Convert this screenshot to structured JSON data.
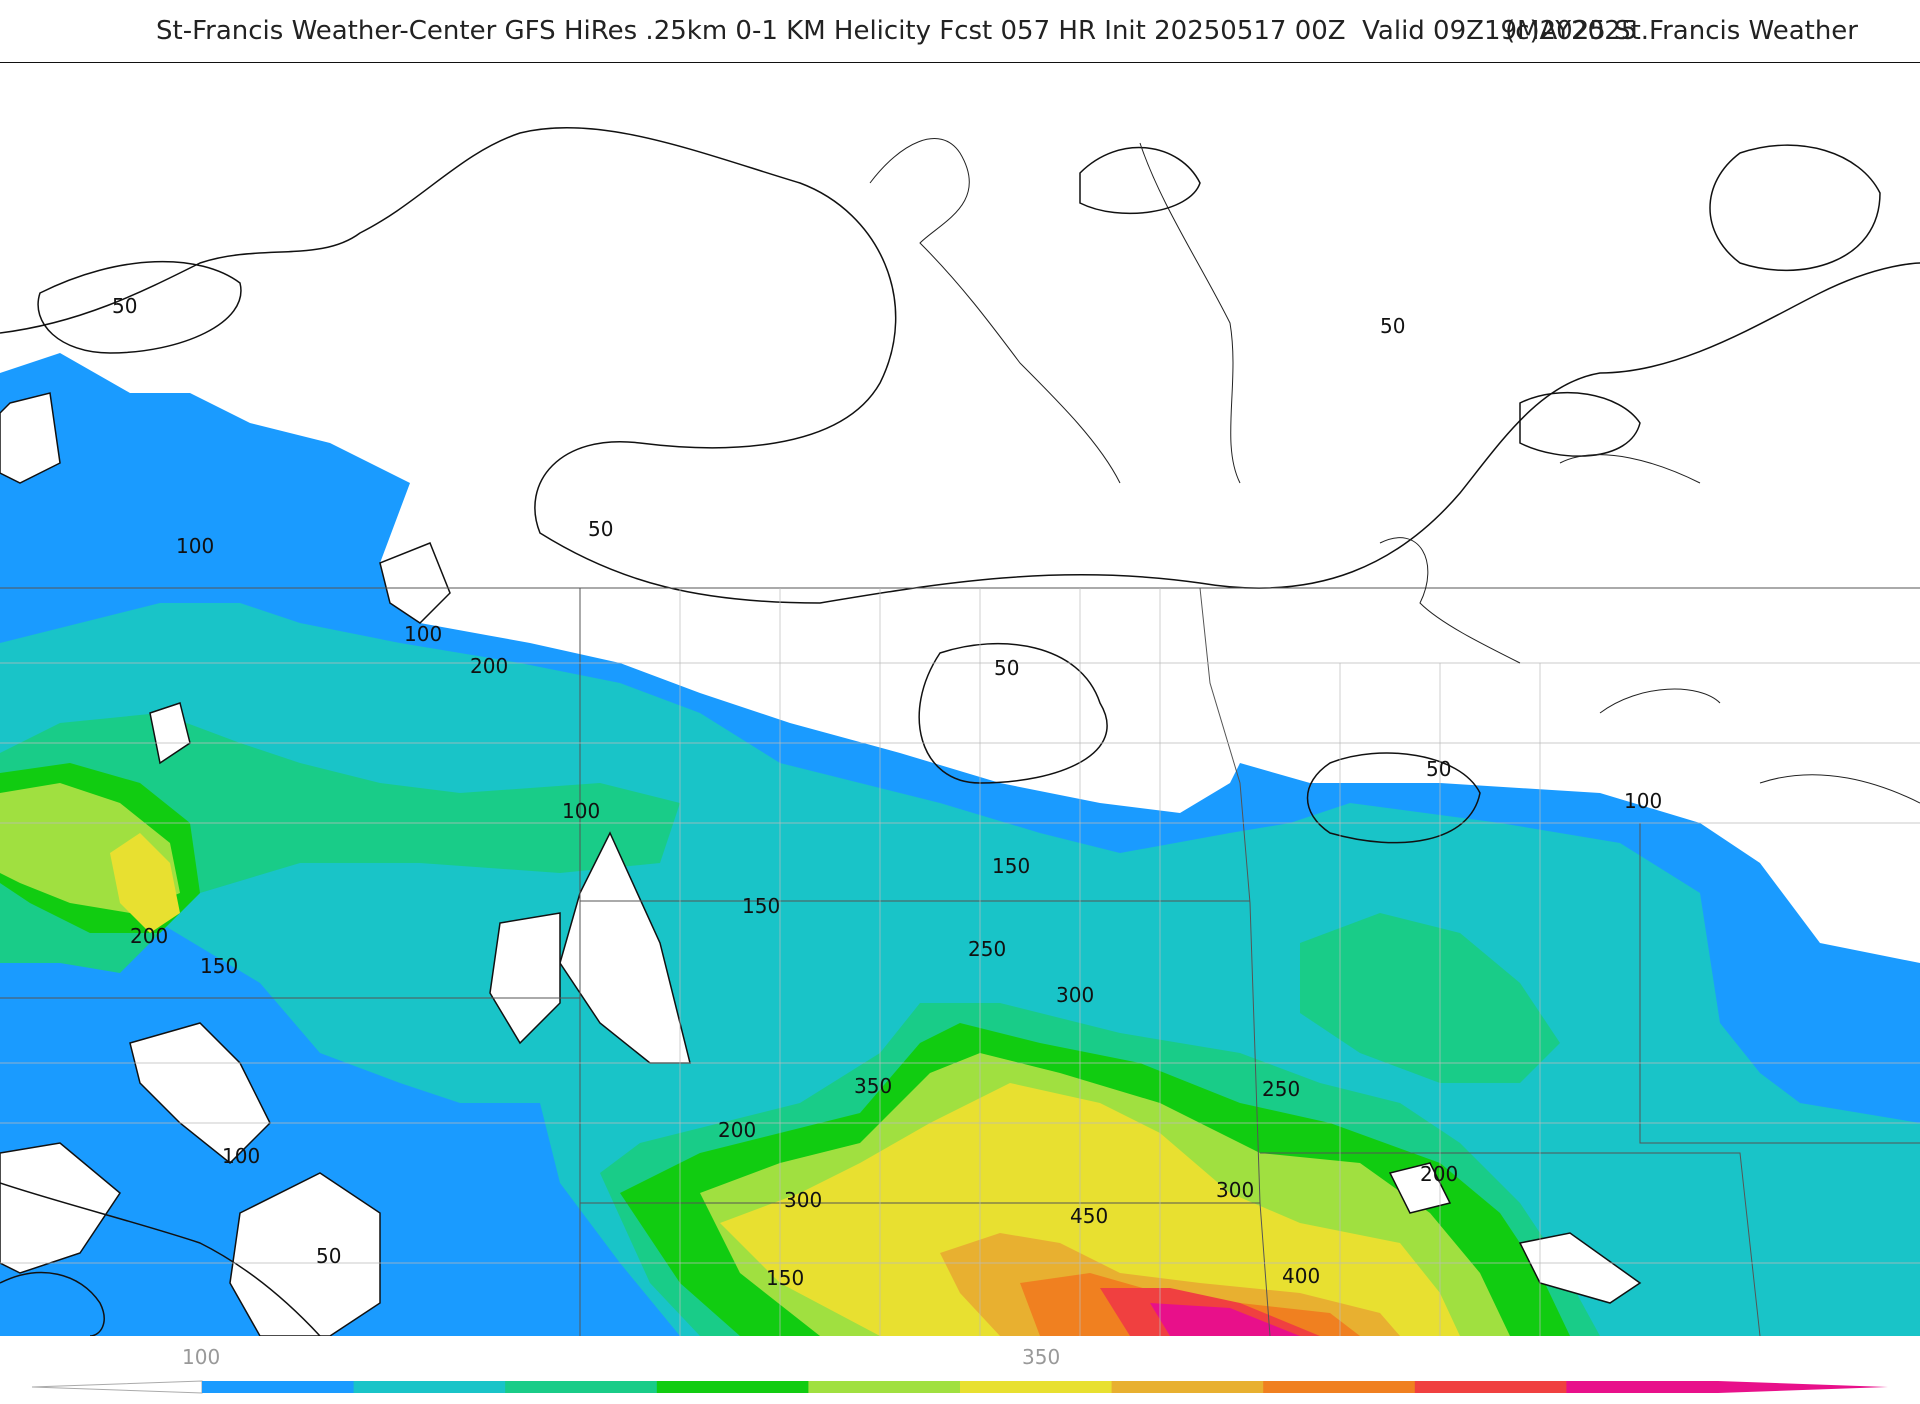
{
  "title": {
    "main": "St-Francis Weather-Center GFS HiRes .25km 0-1 KM Helicity Fcst 057 HR Init 20250517 00Z  Valid 09Z19MAY2025",
    "copyright": "(c)2025 St.Francis Weather"
  },
  "contour_labels": [
    "50",
    "100",
    "150",
    "200",
    "250",
    "300",
    "350",
    "400",
    "450"
  ],
  "colorbar": {
    "tick_labels": [
      "100",
      "350"
    ],
    "colors": [
      "#1a9bff",
      "#19c4c8",
      "#19cc88",
      "#11cc11",
      "#a0e040",
      "#e8e030",
      "#e8b030",
      "#f08020",
      "#f04040",
      "#e8108a"
    ]
  },
  "field_colors": {
    "c50": "#ffffff",
    "c100": "#1a9bff",
    "c150": "#19c4c8",
    "c200": "#19cc88",
    "c250": "#11cc11",
    "c300": "#a0e040",
    "c350": "#e8e030",
    "c400": "#e8b030",
    "c450": "#f08020",
    "c500": "#f04040",
    "c550": "#e8108a"
  }
}
